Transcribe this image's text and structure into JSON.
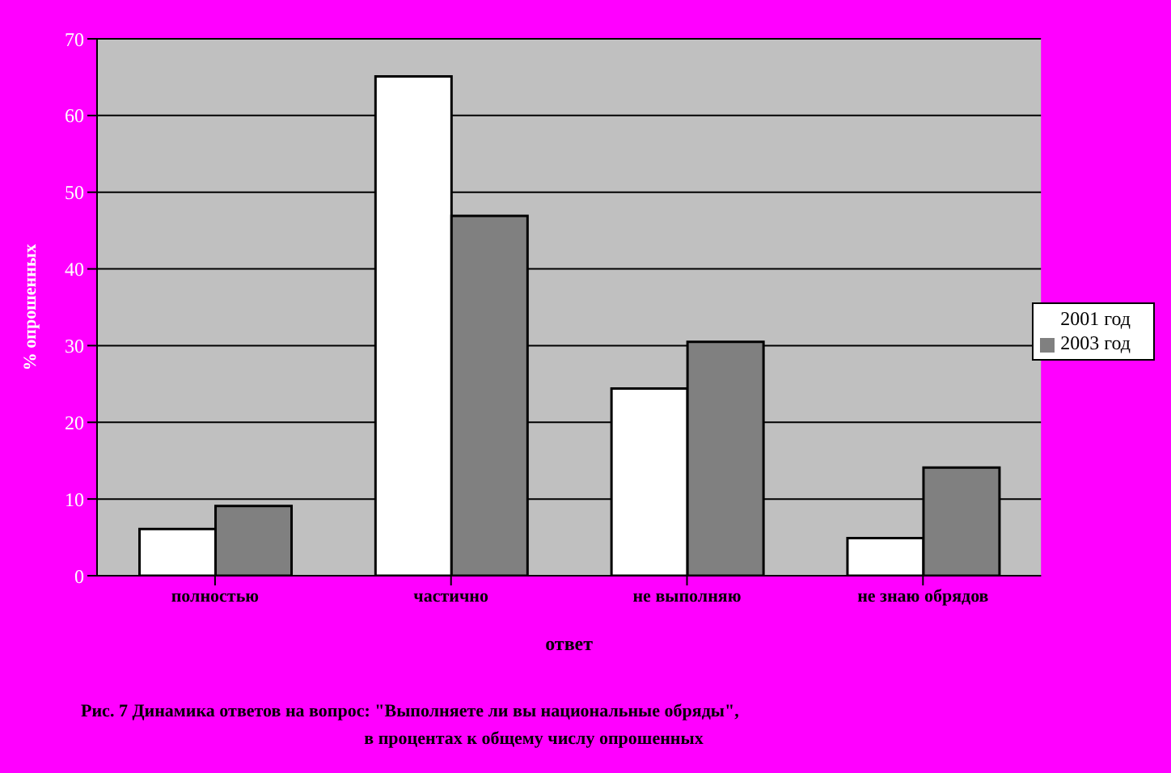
{
  "chart_data": {
    "type": "bar",
    "xlabel": "ответ",
    "ylabel": "% опрошенных",
    "annotations": [
      "Рис. 7 Динамика ответов на вопрос: \"Выполняете ли вы национальные обряды\",",
      "в процентах к общему числу опрошенных"
    ],
    "categories": [
      "полностью",
      "частично",
      "не выполняю",
      "не знаю обрядов"
    ],
    "series": [
      {
        "name": "2001 год",
        "color": "#ffffff",
        "values": [
          6.1,
          65.1,
          24.4,
          4.9
        ]
      },
      {
        "name": "2003 год",
        "color": "#808080",
        "values": [
          9.1,
          46.9,
          30.5,
          14.1
        ]
      }
    ],
    "ylim": [
      0,
      70
    ],
    "yticks": [
      0,
      10,
      20,
      30,
      40,
      50,
      60,
      70
    ],
    "grid": "y",
    "legend": "right"
  }
}
